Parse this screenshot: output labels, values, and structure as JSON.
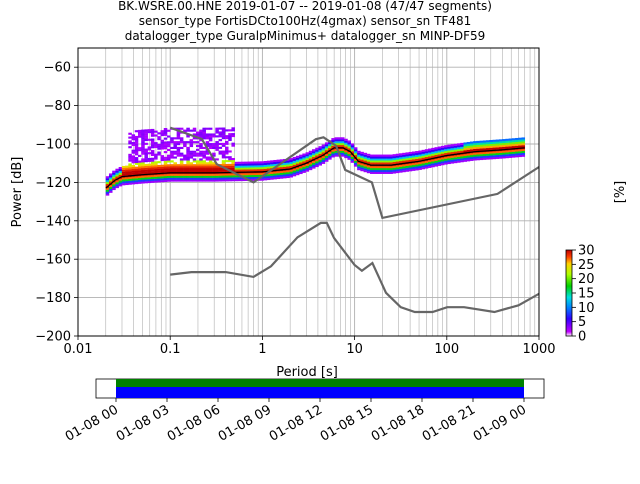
{
  "chart_data": {
    "type": "heatmap",
    "title_lines": [
      "BK.WSRE.00.HNE   2019-01-07 -- 2019-01-08  (47/47 segments)",
      "sensor_type FortisDCto100Hz(4gmax) sensor_sn TF481",
      "datalogger_type GuralpMinimus+ datalogger_sn MINP-DF59"
    ],
    "xlabel": "Period [s]",
    "ylabel": "Power [dB]",
    "x_scale": "log",
    "xlim": [
      0.01,
      1000
    ],
    "ylim": [
      -200,
      -50
    ],
    "x_ticks": [
      {
        "v": 0.01,
        "label": "0.01"
      },
      {
        "v": 0.1,
        "label": "0.1"
      },
      {
        "v": 1,
        "label": "1"
      },
      {
        "v": 10,
        "label": "10"
      },
      {
        "v": 100,
        "label": "100"
      },
      {
        "v": 1000,
        "label": "1000"
      }
    ],
    "y_ticks": [
      {
        "v": -60,
        "label": "−60"
      },
      {
        "v": -80,
        "label": "−80"
      },
      {
        "v": -100,
        "label": "−100"
      },
      {
        "v": -120,
        "label": "−120"
      },
      {
        "v": -140,
        "label": "−140"
      },
      {
        "v": -160,
        "label": "−160"
      },
      {
        "v": -180,
        "label": "−180"
      },
      {
        "v": -200,
        "label": "−200"
      }
    ],
    "grid": true,
    "colorbar": {
      "label": "[%]",
      "range": [
        0,
        30
      ],
      "ticks": [
        {
          "v": 0,
          "label": "0"
        },
        {
          "v": 5,
          "label": "5"
        },
        {
          "v": 10,
          "label": "10"
        },
        {
          "v": 15,
          "label": "15"
        },
        {
          "v": 20,
          "label": "20"
        },
        {
          "v": 25,
          "label": "25"
        },
        {
          "v": 30,
          "label": "30"
        }
      ]
    },
    "noise_models": {
      "nhnm": [
        [
          0.1,
          -91.5
        ],
        [
          0.22,
          -97.4
        ],
        [
          0.32,
          -110.5
        ],
        [
          0.8,
          -120
        ],
        [
          1.3,
          -113
        ],
        [
          3.8,
          -97.5
        ],
        [
          4.6,
          -96.5
        ],
        [
          6.3,
          -101
        ],
        [
          7.9,
          -113.5
        ],
        [
          15.4,
          -120
        ],
        [
          20,
          -138.5
        ],
        [
          354.8,
          -126
        ],
        [
          1000,
          -112
        ]
      ],
      "nlnm": [
        [
          0.1,
          -168
        ],
        [
          0.17,
          -166.7
        ],
        [
          0.4,
          -166.7
        ],
        [
          0.8,
          -169.2
        ],
        [
          1.24,
          -163.7
        ],
        [
          2.4,
          -148.6
        ],
        [
          4.3,
          -141.1
        ],
        [
          5,
          -141.1
        ],
        [
          6,
          -149
        ],
        [
          10,
          -163
        ],
        [
          12,
          -166
        ],
        [
          15.6,
          -162
        ],
        [
          21.9,
          -177.5
        ],
        [
          31.6,
          -185
        ],
        [
          45,
          -187.5
        ],
        [
          70,
          -187.5
        ],
        [
          101,
          -185
        ],
        [
          154,
          -185
        ],
        [
          328,
          -187.5
        ],
        [
          600,
          -184
        ],
        [
          1000,
          -178
        ]
      ]
    },
    "median_curve": [
      [
        0.02,
        -123
      ],
      [
        0.025,
        -119
      ],
      [
        0.03,
        -117
      ],
      [
        0.05,
        -116
      ],
      [
        0.1,
        -115
      ],
      [
        0.3,
        -115
      ],
      [
        1,
        -114.5
      ],
      [
        2,
        -113
      ],
      [
        3,
        -110
      ],
      [
        4.5,
        -106
      ],
      [
        6,
        -102
      ],
      [
        7.5,
        -102
      ],
      [
        9,
        -104
      ],
      [
        11,
        -109
      ],
      [
        15,
        -111
      ],
      [
        25,
        -111
      ],
      [
        50,
        -109
      ],
      [
        100,
        -106
      ],
      [
        200,
        -104
      ],
      [
        400,
        -103
      ],
      [
        700,
        -102
      ]
    ],
    "time_axis": {
      "tick_labels": [
        "01-08 00",
        "01-08 03",
        "01-08 06",
        "01-08 09",
        "01-08 12",
        "01-08 15",
        "01-08 18",
        "01-08 21",
        "01-09 00"
      ],
      "range": [
        "01-08 00",
        "01-09 00"
      ],
      "bars": [
        {
          "name": "data",
          "color": "#0000ff"
        },
        {
          "name": "used",
          "color": "#008000"
        }
      ]
    }
  }
}
